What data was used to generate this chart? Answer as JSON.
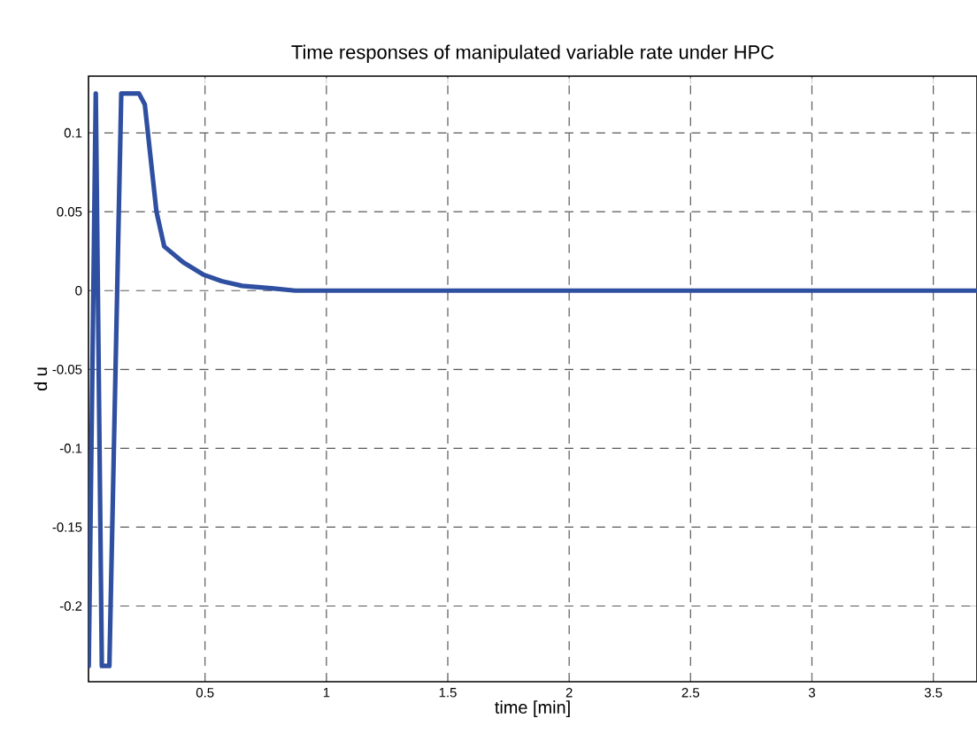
{
  "chart_data": {
    "type": "line",
    "title": "Time responses of manipulated variable rate under HPC",
    "xlabel": "time [min]",
    "ylabel": "d u",
    "xlim": [
      0.02,
      3.68
    ],
    "ylim": [
      -0.248,
      0.136
    ],
    "xticks": [
      0.5,
      1,
      1.5,
      2,
      2.5,
      3,
      3.5
    ],
    "yticks": [
      -0.2,
      -0.15,
      -0.1,
      -0.05,
      0,
      0.05,
      0.1
    ],
    "grid": true,
    "line_style": "solid",
    "series": [
      {
        "color": "#2f4fa0",
        "x": [
          0.021,
          0.021,
          0.05,
          0.075,
          0.106,
          0.155,
          0.228,
          0.252,
          0.3,
          0.332,
          0.41,
          0.495,
          0.568,
          0.653,
          0.774,
          0.872,
          1.5,
          2,
          2.5,
          3,
          3.68
        ],
        "values": [
          -0.133,
          -0.238,
          0.125,
          -0.238,
          -0.238,
          0.125,
          0.125,
          0.118,
          0.05,
          0.028,
          0.018,
          0.01,
          0.006,
          0.003,
          0.0015,
          0,
          0,
          0,
          0,
          0,
          0
        ]
      }
    ]
  }
}
